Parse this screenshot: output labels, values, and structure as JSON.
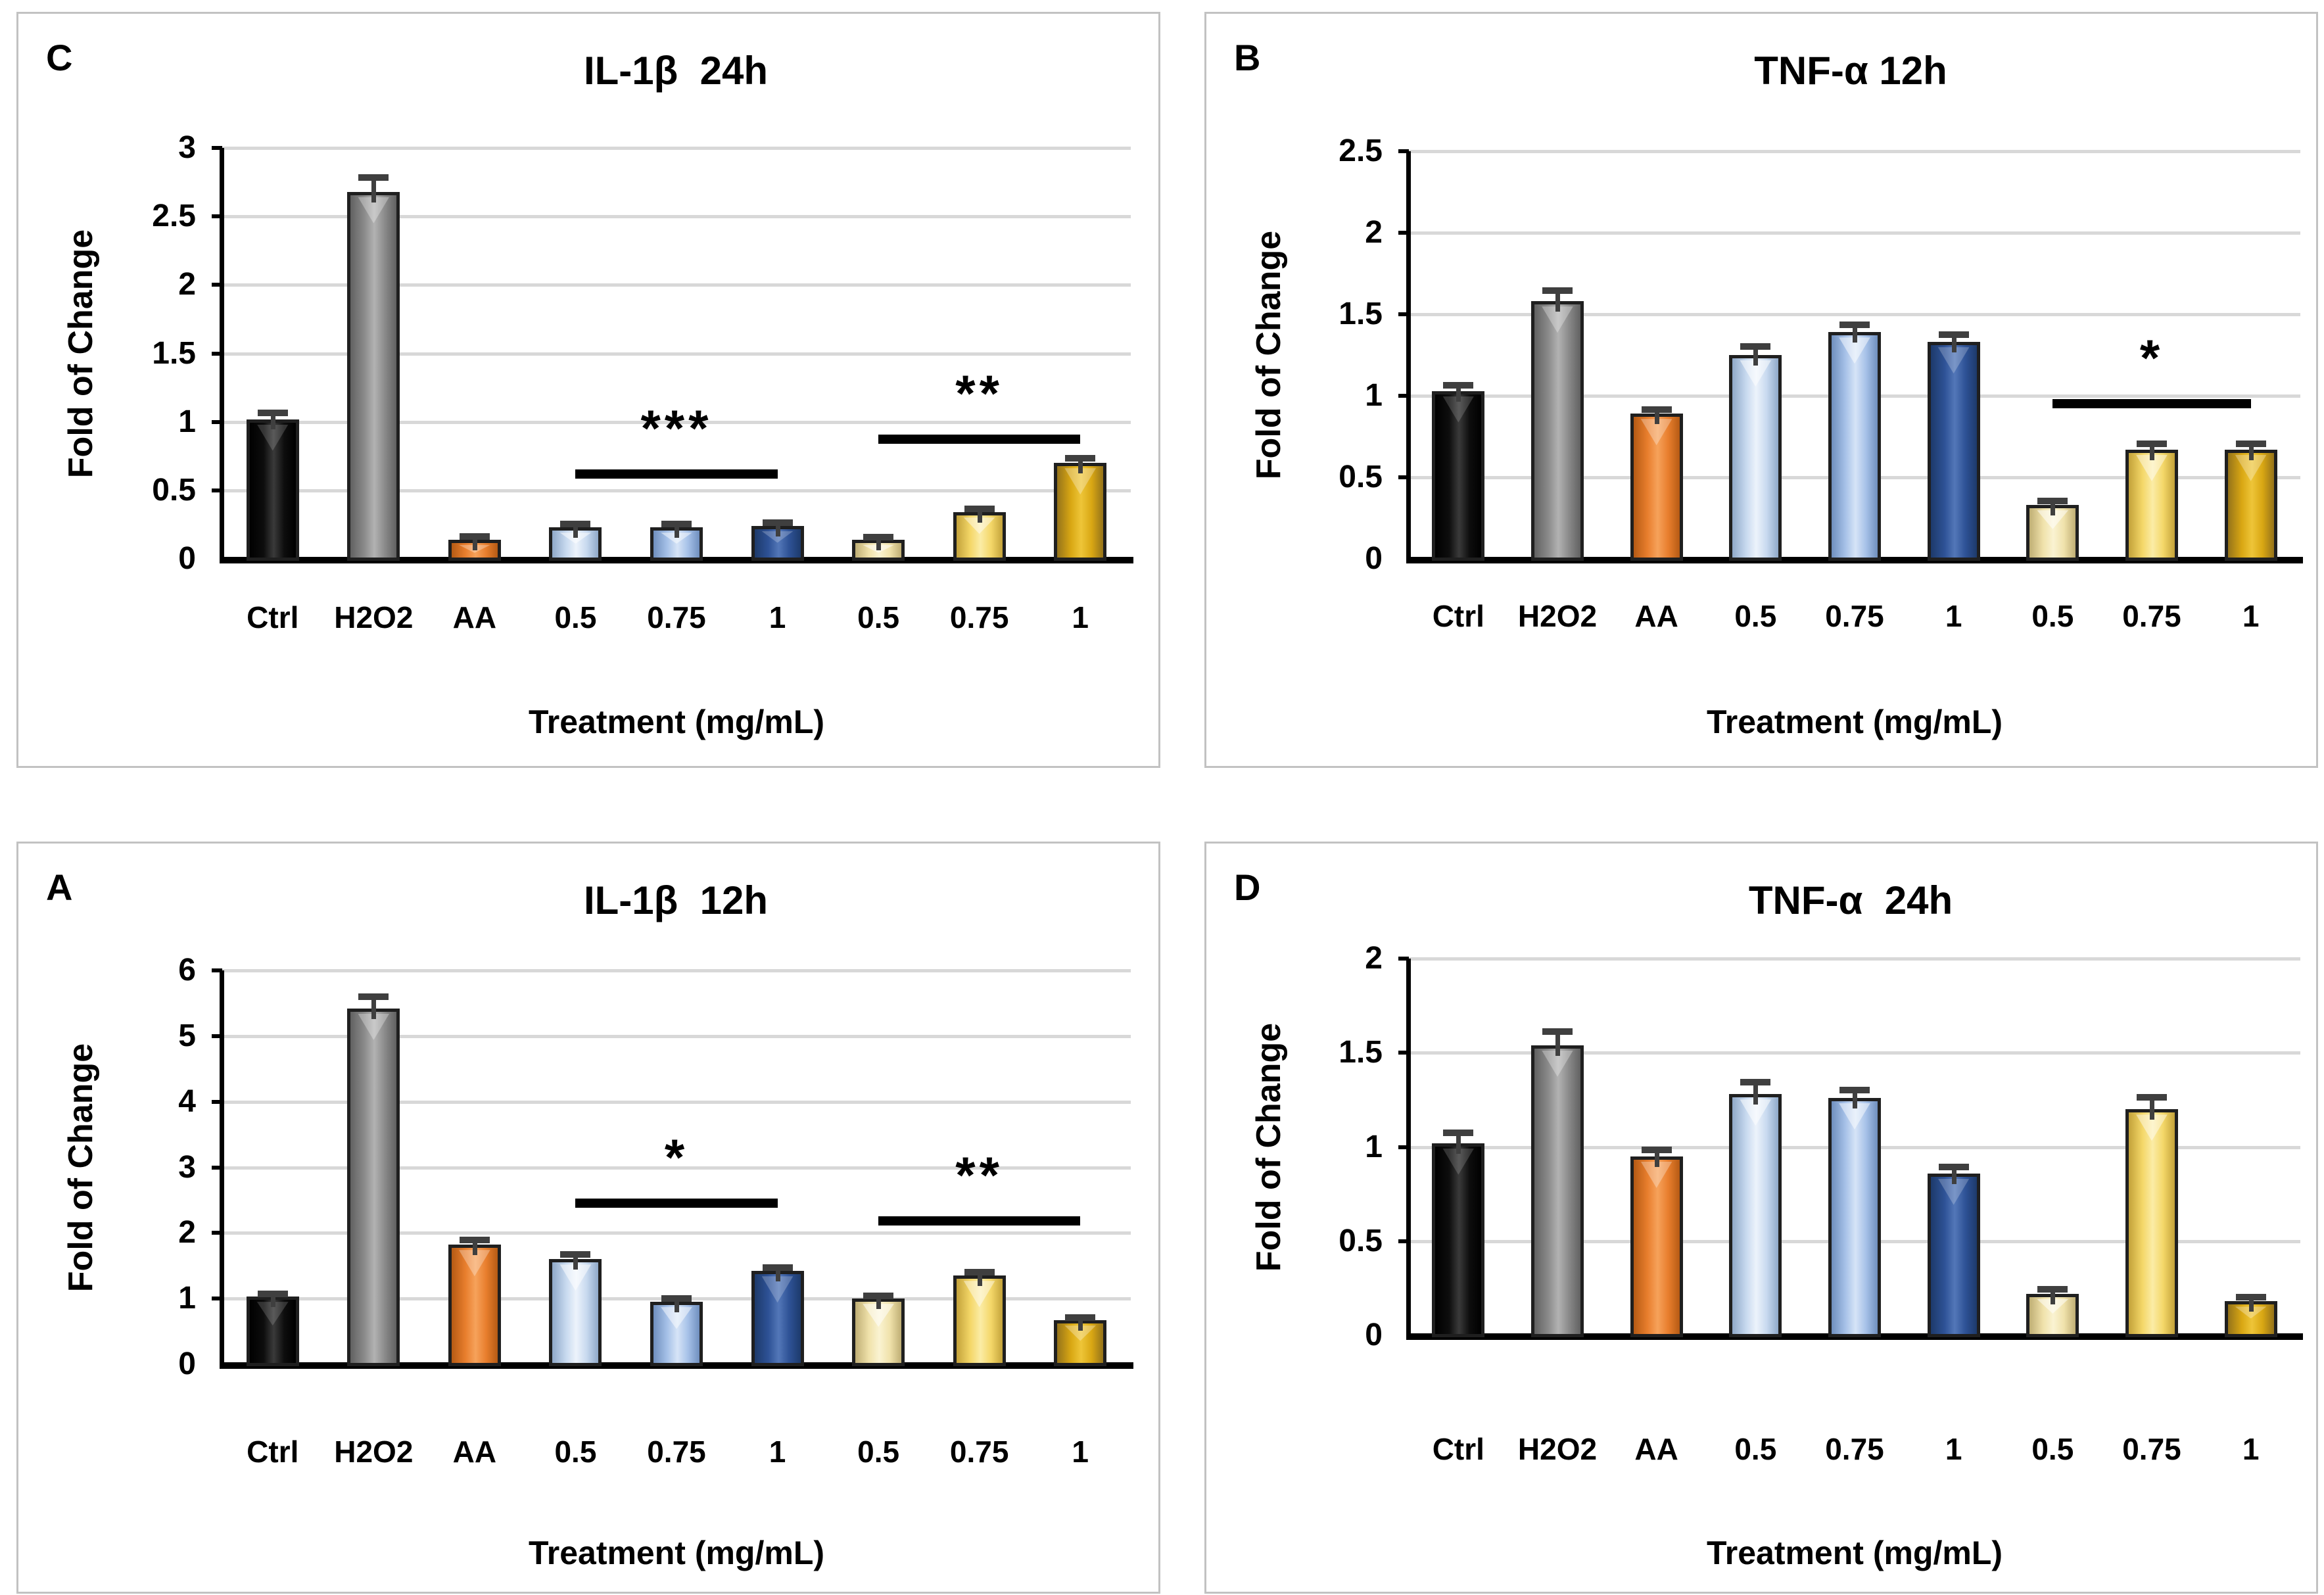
{
  "figure": {
    "background": "#ffffff",
    "panel_border_color": "#c2c2c2",
    "gridline_color": "#d8d8d8",
    "axis_color": "#000000",
    "error_bar_color": "#3f3f3f"
  },
  "palette": {
    "bars": [
      {
        "name": "black-ctrl",
        "edge": "#000000",
        "body": "#0d0d0d",
        "light": "#3a3a3a",
        "hi": "rgba(255,255,255,0.22)"
      },
      {
        "name": "gray-h2o2",
        "edge": "#616161",
        "body": "#8a8a8a",
        "light": "#b2b2b2",
        "hi": "rgba(255,255,255,0.40)"
      },
      {
        "name": "orange-aa",
        "edge": "#b55a14",
        "body": "#e87e2d",
        "light": "#f6a25b",
        "hi": "rgba(255,255,255,0.40)"
      },
      {
        "name": "light-blue-05",
        "edge": "#8fa8c8",
        "body": "#c7d9ef",
        "light": "#edf3fb",
        "hi": "rgba(255,255,255,0.70)"
      },
      {
        "name": "light-blue-075",
        "edge": "#6f8fbe",
        "body": "#a6c1e8",
        "light": "#d6e4f7",
        "hi": "rgba(255,255,255,0.65)"
      },
      {
        "name": "dark-blue-1",
        "edge": "#1d3a6b",
        "body": "#2e5296",
        "light": "#5377b8",
        "hi": "rgba(255,255,255,0.30)"
      },
      {
        "name": "pale-yellow-05",
        "edge": "#bfae74",
        "body": "#f0e2ab",
        "light": "#faf3d2",
        "hi": "rgba(255,255,255,0.70)"
      },
      {
        "name": "gold-075",
        "edge": "#c3a23a",
        "body": "#f4d768",
        "light": "#fbeca6",
        "hi": "rgba(255,255,255,0.60)"
      },
      {
        "name": "dark-gold-1",
        "edge": "#95731a",
        "body": "#d9a713",
        "light": "#eec538",
        "hi": "rgba(255,255,255,0.40)"
      }
    ]
  },
  "chart_data": [
    {
      "id": "C",
      "type": "bar",
      "panel_letter": "C",
      "title": "IL-1β  24h",
      "xlabel": "Treatment (mg/mL)",
      "ylabel": "Fold of Change",
      "ylim": [
        0,
        3
      ],
      "ytick_step": 0.5,
      "ytick_labels": [
        "3",
        "2.5",
        "2",
        "1.5",
        "1",
        "0.5",
        "0"
      ],
      "grid": true,
      "legend": "none",
      "categories": [
        "Ctrl",
        "H2O2",
        "AA",
        "0.5",
        "0.75",
        "1",
        "0.5",
        "0.75",
        "1"
      ],
      "values": [
        1.02,
        2.68,
        0.14,
        0.23,
        0.23,
        0.24,
        0.14,
        0.34,
        0.7
      ],
      "errors": [
        0.04,
        0.1,
        0.02,
        0.02,
        0.02,
        0.02,
        0.015,
        0.02,
        0.03
      ],
      "significance": [
        {
          "from": 3,
          "to": 5,
          "line_y": 0.62,
          "label": "***"
        },
        {
          "from": 6,
          "to": 8,
          "line_y": 0.875,
          "label": "**"
        }
      ]
    },
    {
      "id": "B",
      "type": "bar",
      "panel_letter": "B",
      "title": "TNF-α 12h",
      "xlabel": "Treatment (mg/mL)",
      "ylabel": "Fold of Change",
      "ylim": [
        0,
        2.5
      ],
      "ytick_step": 0.5,
      "ytick_labels": [
        "2.5",
        "2",
        "1.5",
        "1",
        "0.5",
        "0"
      ],
      "grid": true,
      "legend": "none",
      "categories": [
        "Ctrl",
        "H2O2",
        "AA",
        "0.5",
        "0.75",
        "1",
        "0.5",
        "0.75",
        "1"
      ],
      "values": [
        1.03,
        1.58,
        0.89,
        1.25,
        1.39,
        1.33,
        0.33,
        0.67,
        0.67
      ],
      "errors": [
        0.03,
        0.06,
        0.02,
        0.05,
        0.04,
        0.04,
        0.02,
        0.03,
        0.03
      ],
      "significance": [
        {
          "from": 6,
          "to": 8,
          "line_y": 0.95,
          "label": "*"
        }
      ]
    },
    {
      "id": "A",
      "type": "bar",
      "panel_letter": "A",
      "title": "IL-1β  12h",
      "xlabel": "Treatment (mg/mL)",
      "ylabel": "Fold of Change",
      "ylim": [
        0,
        6
      ],
      "ytick_step": 1,
      "ytick_labels": [
        "6",
        "5",
        "4",
        "3",
        "2",
        "1",
        "0"
      ],
      "grid": true,
      "legend": "none",
      "categories": [
        "Ctrl",
        "H2O2",
        "AA",
        "0.5",
        "0.75",
        "1",
        "0.5",
        "0.75",
        "1"
      ],
      "values": [
        1.03,
        5.42,
        1.82,
        1.6,
        0.95,
        1.42,
        1.0,
        1.35,
        0.67
      ],
      "errors": [
        0.03,
        0.17,
        0.06,
        0.06,
        0.04,
        0.04,
        0.03,
        0.04,
        0.03
      ],
      "significance": [
        {
          "from": 3,
          "to": 5,
          "line_y": 2.45,
          "label": "*"
        },
        {
          "from": 6,
          "to": 8,
          "line_y": 2.18,
          "label": "**"
        }
      ]
    },
    {
      "id": "D",
      "type": "bar",
      "panel_letter": "D",
      "title": "TNF-α  24h",
      "xlabel": "Treatment (mg/mL)",
      "ylabel": "Fold of Change",
      "ylim": [
        0,
        2
      ],
      "ytick_step": 0.5,
      "ytick_labels": [
        "2",
        "1.5",
        "1",
        "0.5",
        "0"
      ],
      "grid": true,
      "legend": "none",
      "categories": [
        "Ctrl",
        "H2O2",
        "AA",
        "0.5",
        "0.75",
        "1",
        "0.5",
        "0.75",
        "1"
      ],
      "values": [
        1.02,
        1.54,
        0.95,
        1.28,
        1.26,
        0.86,
        0.22,
        1.2,
        0.18
      ],
      "errors": [
        0.05,
        0.07,
        0.03,
        0.06,
        0.04,
        0.03,
        0.02,
        0.06,
        0.02
      ],
      "significance": []
    }
  ]
}
